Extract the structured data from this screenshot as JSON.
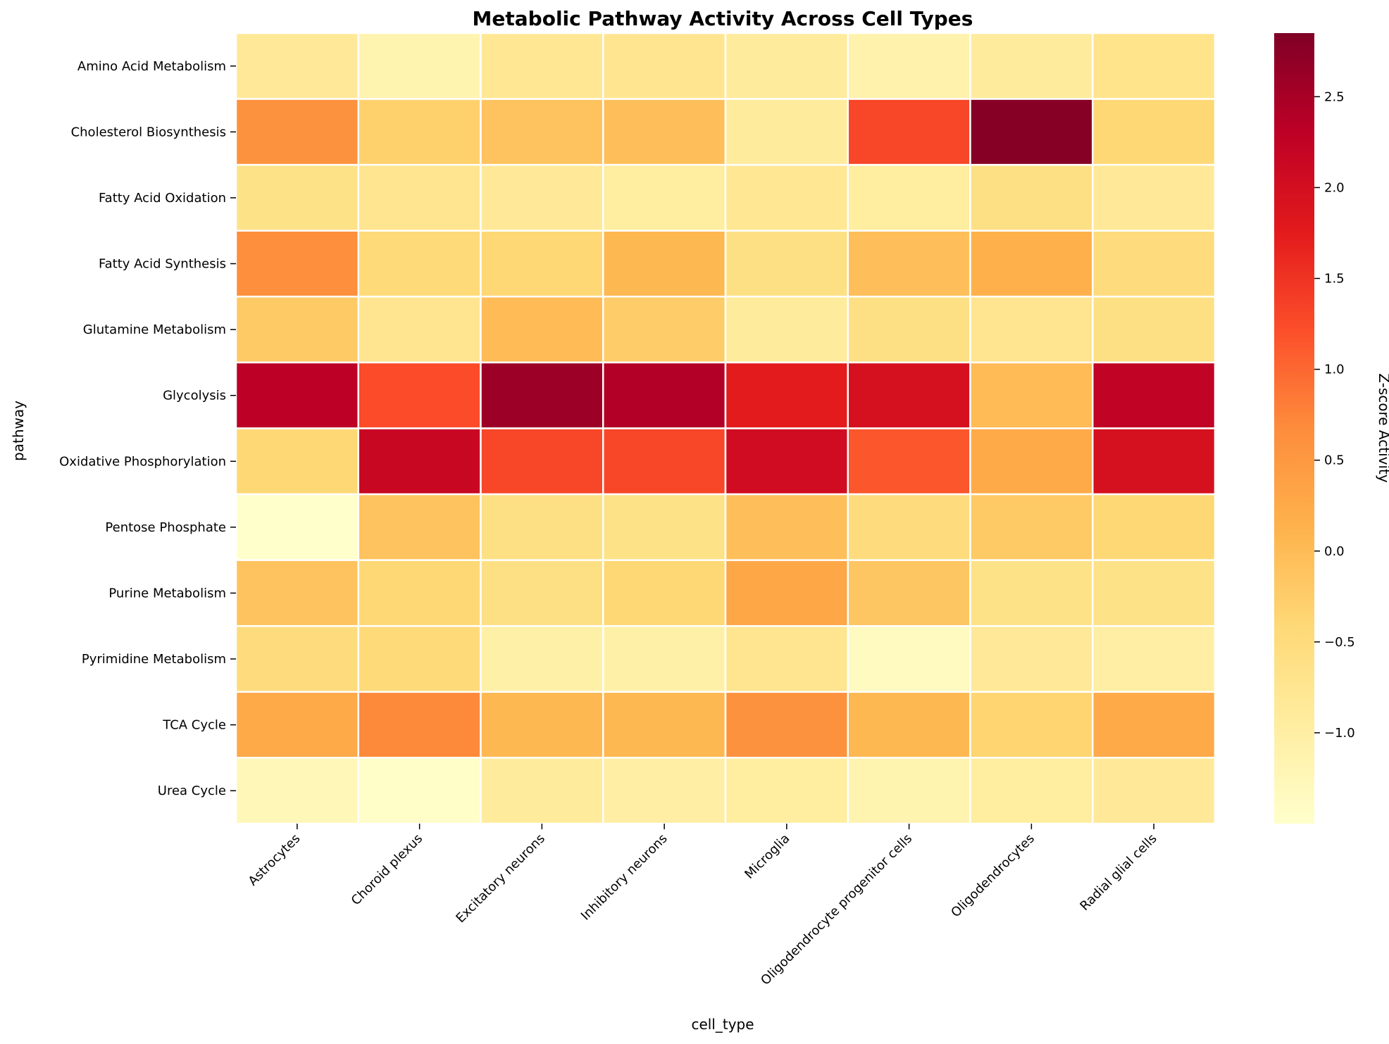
{
  "chart_data": {
    "type": "heatmap",
    "title": "Metabolic Pathway Activity Across Cell Types",
    "xlabel": "cell_type",
    "ylabel": "pathway",
    "x_categories": [
      "Astrocytes",
      "Choroid plexus",
      "Excitatory neurons",
      "Inhibitory neurons",
      "Microglia",
      "Oligodendrocyte progenitor cells",
      "Oligodendrocytes",
      "Radial glial cells"
    ],
    "y_categories": [
      "Amino Acid Metabolism",
      "Cholesterol Biosynthesis",
      "Fatty Acid Oxidation",
      "Fatty Acid Synthesis",
      "Glutamine Metabolism",
      "Glycolysis",
      "Oxidative Phosphorylation",
      "Pentose Phosphate",
      "Purine Metabolism",
      "Pyrimidine Metabolism",
      "TCA Cycle",
      "Urea Cycle"
    ],
    "values": [
      [
        -0.85,
        -1.15,
        -0.8,
        -0.75,
        -0.9,
        -1.1,
        -0.9,
        -0.7
      ],
      [
        0.6,
        -0.3,
        -0.1,
        -0.05,
        -0.9,
        1.3,
        2.8,
        -0.4
      ],
      [
        -0.65,
        -0.75,
        -0.85,
        -0.95,
        -0.8,
        -0.95,
        -0.6,
        -0.85
      ],
      [
        0.65,
        -0.45,
        -0.4,
        0.05,
        -0.6,
        -0.05,
        0.15,
        -0.5
      ],
      [
        -0.2,
        -0.75,
        0.0,
        -0.25,
        -0.9,
        -0.6,
        -0.75,
        -0.6
      ],
      [
        2.3,
        1.25,
        2.6,
        2.4,
        1.75,
        1.95,
        0.0,
        2.25
      ],
      [
        -0.4,
        2.15,
        1.3,
        1.3,
        2.05,
        1.15,
        0.25,
        1.95
      ],
      [
        -1.5,
        -0.1,
        -0.6,
        -0.65,
        -0.05,
        -0.5,
        -0.2,
        -0.4
      ],
      [
        -0.1,
        -0.4,
        -0.6,
        -0.4,
        0.3,
        -0.15,
        -0.65,
        -0.65
      ],
      [
        -0.5,
        -0.45,
        -1.05,
        -1.05,
        -0.75,
        -1.35,
        -0.85,
        -1.0
      ],
      [
        0.25,
        0.7,
        0.05,
        0.05,
        0.6,
        0.05,
        -0.35,
        0.25
      ],
      [
        -1.25,
        -1.45,
        -0.9,
        -1.0,
        -0.95,
        -1.15,
        -0.95,
        -0.85
      ]
    ],
    "zlim": [
      -1.5,
      2.85
    ],
    "colormap": "YlOrRd",
    "colorbar": {
      "label": "Z-score Activity",
      "ticks": [
        -1.0,
        -0.5,
        0.0,
        0.5,
        1.0,
        1.5,
        2.0,
        2.5
      ],
      "tick_labels": [
        "−1.0",
        "−0.5",
        "0.0",
        "0.5",
        "1.0",
        "1.5",
        "2.0",
        "2.5"
      ]
    },
    "grid": true,
    "cell_border_color": "#ffffff"
  }
}
